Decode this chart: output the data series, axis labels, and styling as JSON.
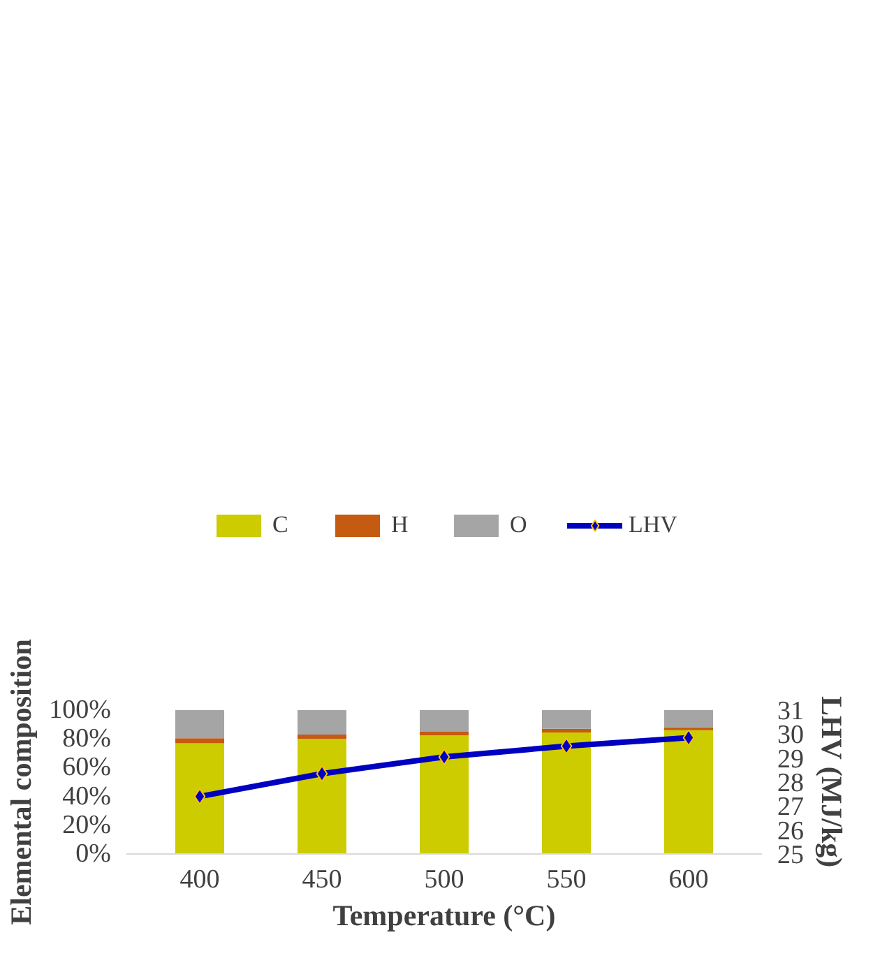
{
  "chart_data": {
    "type": "bar",
    "stacked": true,
    "xlabel": "Temperature (°C)",
    "ylabel": "Elemental composition",
    "y2label": "LHV (MJ/kg)",
    "categories": [
      "400",
      "450",
      "500",
      "550",
      "600"
    ],
    "series": [
      {
        "name": "C",
        "color": "#cccc00",
        "values": [
          77,
          80,
          82.5,
          84.5,
          86
        ]
      },
      {
        "name": "H",
        "color": "#c55a11",
        "values": [
          3.5,
          3,
          2.5,
          2.5,
          2
        ]
      },
      {
        "name": "O",
        "color": "#a5a5a5",
        "values": [
          19.5,
          17,
          15,
          13,
          12
        ]
      },
      {
        "name": "LHV",
        "type": "line",
        "axis": "y2",
        "color": "#0000c0",
        "values": [
          27.4,
          28.35,
          29.05,
          29.5,
          29.85
        ]
      }
    ],
    "ylim": [
      0,
      100
    ],
    "yticks": [
      {
        "value": 0,
        "label": "0%"
      },
      {
        "value": 20,
        "label": "20%"
      },
      {
        "value": 40,
        "label": "40%"
      },
      {
        "value": 60,
        "label": "60%"
      },
      {
        "value": 80,
        "label": "80%"
      },
      {
        "value": 100,
        "label": "100%"
      }
    ],
    "y2lim": [
      25,
      31
    ],
    "y2ticks": [
      25,
      26,
      27,
      28,
      29,
      30,
      31
    ],
    "marker": "diamond",
    "grid": false,
    "legend": "top"
  }
}
